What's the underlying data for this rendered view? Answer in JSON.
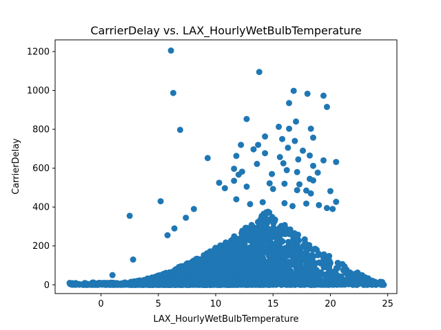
{
  "chart_data": {
    "type": "scatter",
    "title": "CarrierDelay vs. LAX_HourlyWetBulbTemperature",
    "xlabel": "LAX_HourlyWetBulbTemperature",
    "ylabel": "CarrierDelay",
    "xlim": [
      -4,
      25.8
    ],
    "ylim": [
      -45,
      1260
    ],
    "xticks": [
      0,
      5,
      10,
      15,
      20,
      25
    ],
    "yticks": [
      0,
      200,
      400,
      600,
      800,
      1000,
      1200
    ],
    "grid": false,
    "marker_color": "#1f77b4",
    "outliers": [
      {
        "x": 6.1,
        "y": 1205
      },
      {
        "x": 6.3,
        "y": 987
      },
      {
        "x": 6.9,
        "y": 797
      },
      {
        "x": 13.8,
        "y": 1095
      },
      {
        "x": 16.8,
        "y": 998
      },
      {
        "x": 18.0,
        "y": 983
      },
      {
        "x": 19.4,
        "y": 973
      },
      {
        "x": 19.7,
        "y": 915
      },
      {
        "x": 16.4,
        "y": 935
      },
      {
        "x": 12.7,
        "y": 853
      },
      {
        "x": 17.0,
        "y": 840
      },
      {
        "x": 15.5,
        "y": 813
      },
      {
        "x": 16.4,
        "y": 803
      },
      {
        "x": 18.3,
        "y": 803
      },
      {
        "x": 14.3,
        "y": 763
      },
      {
        "x": 18.5,
        "y": 757
      },
      {
        "x": 15.8,
        "y": 750
      },
      {
        "x": 16.9,
        "y": 740
      },
      {
        "x": 13.7,
        "y": 720
      },
      {
        "x": 12.2,
        "y": 720
      },
      {
        "x": 16.3,
        "y": 705
      },
      {
        "x": 13.3,
        "y": 697
      },
      {
        "x": 17.6,
        "y": 690
      },
      {
        "x": 14.3,
        "y": 677
      },
      {
        "x": 18.2,
        "y": 665
      },
      {
        "x": 11.8,
        "y": 663
      },
      {
        "x": 15.6,
        "y": 657
      },
      {
        "x": 9.3,
        "y": 652
      },
      {
        "x": 17.2,
        "y": 645
      },
      {
        "x": 19.4,
        "y": 640
      },
      {
        "x": 20.5,
        "y": 632
      },
      {
        "x": 15.9,
        "y": 625
      },
      {
        "x": 13.6,
        "y": 622
      },
      {
        "x": 18.5,
        "y": 612
      },
      {
        "x": 11.6,
        "y": 597
      },
      {
        "x": 16.2,
        "y": 590
      },
      {
        "x": 12.3,
        "y": 582
      },
      {
        "x": 17.1,
        "y": 580
      },
      {
        "x": 18.9,
        "y": 577
      },
      {
        "x": 14.9,
        "y": 570
      },
      {
        "x": 12.0,
        "y": 567
      },
      {
        "x": 18.2,
        "y": 545
      },
      {
        "x": 18.5,
        "y": 537
      },
      {
        "x": 11.6,
        "y": 535
      },
      {
        "x": 10.3,
        "y": 525
      },
      {
        "x": 14.7,
        "y": 522
      },
      {
        "x": 16.0,
        "y": 520
      },
      {
        "x": 17.3,
        "y": 517
      },
      {
        "x": 12.7,
        "y": 505
      },
      {
        "x": 10.8,
        "y": 497
      },
      {
        "x": 15.0,
        "y": 493
      },
      {
        "x": 17.1,
        "y": 487
      },
      {
        "x": 17.9,
        "y": 485
      },
      {
        "x": 20.0,
        "y": 482
      },
      {
        "x": 18.3,
        "y": 470
      },
      {
        "x": 11.8,
        "y": 440
      },
      {
        "x": 5.2,
        "y": 430
      },
      {
        "x": 20.5,
        "y": 427
      },
      {
        "x": 14.1,
        "y": 425
      },
      {
        "x": 16.0,
        "y": 420
      },
      {
        "x": 17.9,
        "y": 418
      },
      {
        "x": 13.0,
        "y": 415
      },
      {
        "x": 19.0,
        "y": 410
      },
      {
        "x": 16.7,
        "y": 405
      },
      {
        "x": 8.1,
        "y": 390
      },
      {
        "x": 19.7,
        "y": 395
      },
      {
        "x": 20.2,
        "y": 390
      },
      {
        "x": 2.5,
        "y": 355
      },
      {
        "x": 7.4,
        "y": 345
      },
      {
        "x": 6.4,
        "y": 290
      },
      {
        "x": 5.8,
        "y": 255
      },
      {
        "x": 2.8,
        "y": 130
      },
      {
        "x": 1.0,
        "y": 50
      }
    ],
    "cloud": {
      "x_range": [
        -2.8,
        24.7
      ],
      "count": 4200,
      "peak_x": 14.5,
      "peak_max_y": 380,
      "description_seed": 7
    }
  },
  "axes": {
    "xticklabels": [
      "0",
      "5",
      "10",
      "15",
      "20",
      "25"
    ],
    "yticklabels": [
      "0",
      "200",
      "400",
      "600",
      "800",
      "1000",
      "1200"
    ]
  }
}
